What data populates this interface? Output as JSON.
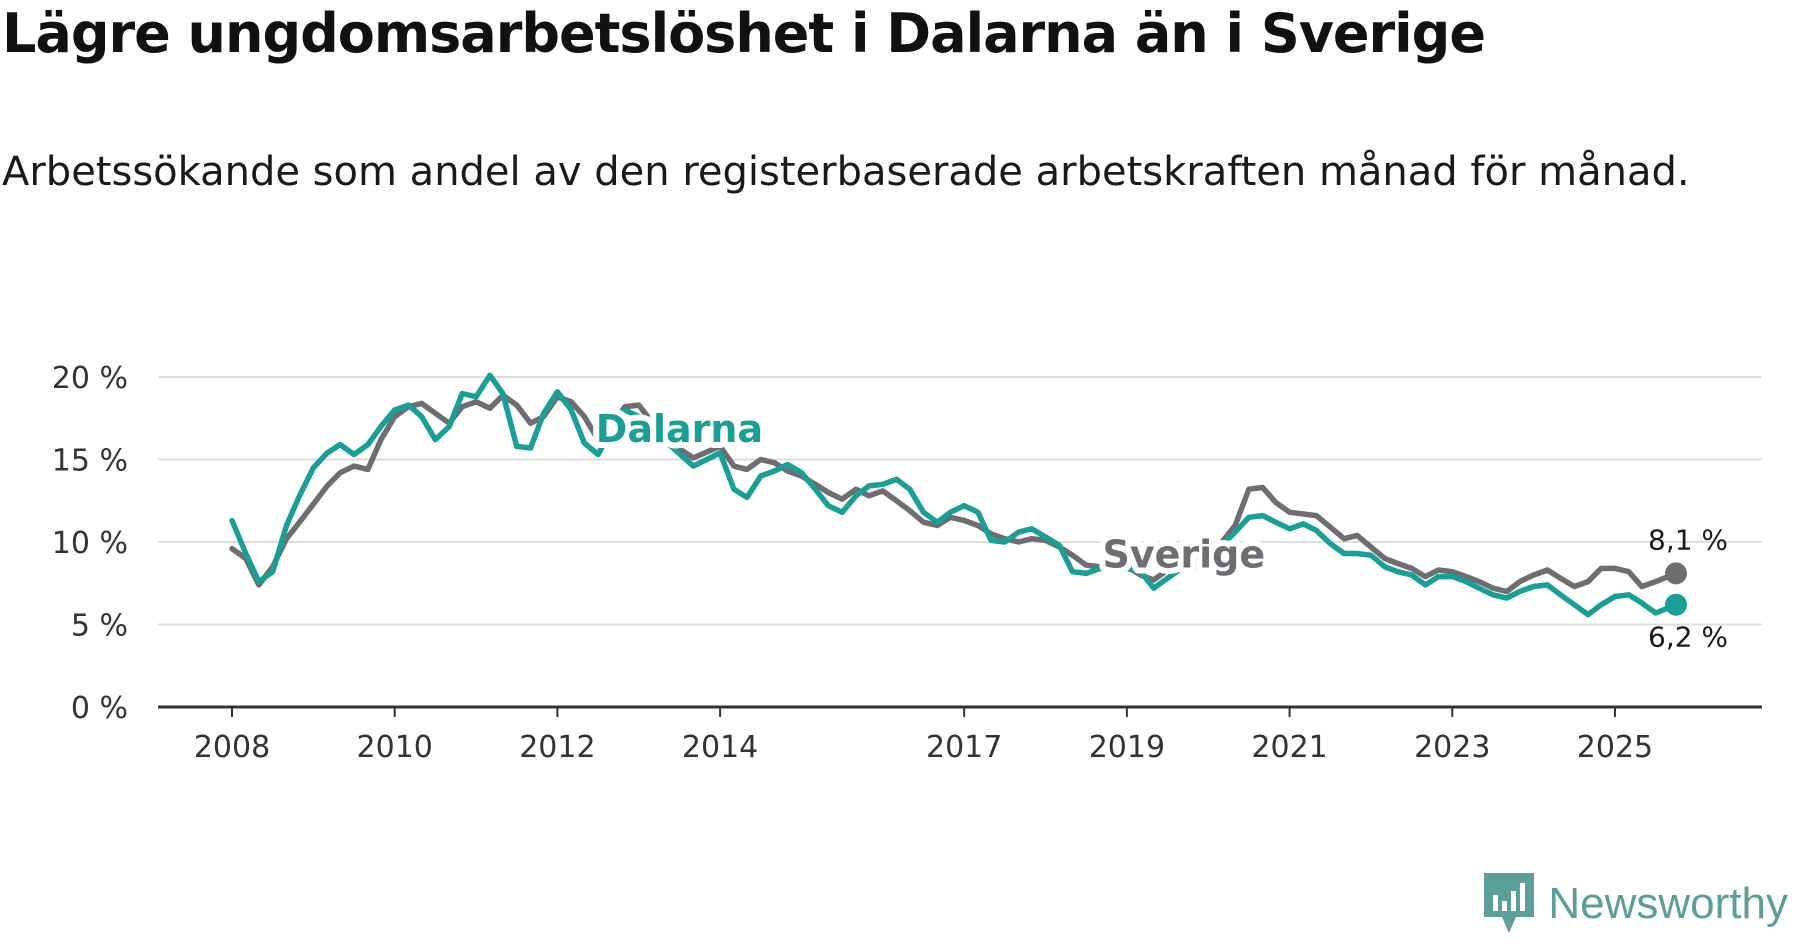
{
  "title": "Lägre ungdomsarbetslöshet i Dalarna än i Sverige",
  "subtitle": "Arbetssökande som andel av den registerbaserade arbetskraften månad för månad.",
  "brand": {
    "name": "Newsworthy",
    "color": "#5c9e98",
    "icon": "newsworthy-logo-icon"
  },
  "chart_data": {
    "type": "line",
    "title": "Lägre ungdomsarbetslöshet i Dalarna än i Sverige",
    "subtitle": "Arbetssökande som andel av den registerbaserade arbetskraften månad för månad.",
    "xlabel": "",
    "ylabel": "",
    "unit": "%",
    "x_domain": [
      2008,
      2025.75
    ],
    "ylim": [
      0,
      20
    ],
    "y_ticks": [
      0,
      5,
      10,
      15,
      20
    ],
    "y_tick_labels": [
      "0 %",
      "5 %",
      "10 %",
      "15 %",
      "20 %"
    ],
    "x_ticks": [
      2008,
      2010,
      2012,
      2014,
      2017,
      2019,
      2021,
      2023,
      2025
    ],
    "x_tick_labels": [
      "2008",
      "2010",
      "2012",
      "2014",
      "2017",
      "2019",
      "2021",
      "2023",
      "2025"
    ],
    "grid": true,
    "series": [
      {
        "name": "Sverige",
        "color": "#6e6d72",
        "end_label": "8,1 %",
        "points": [
          [
            2008.0,
            9.6
          ],
          [
            2008.17,
            9.0
          ],
          [
            2008.33,
            7.4
          ],
          [
            2008.5,
            8.5
          ],
          [
            2008.67,
            10.2
          ],
          [
            2008.83,
            11.2
          ],
          [
            2009.0,
            12.3
          ],
          [
            2009.17,
            13.4
          ],
          [
            2009.33,
            14.2
          ],
          [
            2009.5,
            14.6
          ],
          [
            2009.67,
            14.4
          ],
          [
            2009.83,
            16.2
          ],
          [
            2010.0,
            17.6
          ],
          [
            2010.17,
            18.2
          ],
          [
            2010.33,
            18.4
          ],
          [
            2010.5,
            17.8
          ],
          [
            2010.67,
            17.2
          ],
          [
            2010.83,
            18.2
          ],
          [
            2011.0,
            18.5
          ],
          [
            2011.17,
            18.1
          ],
          [
            2011.33,
            18.9
          ],
          [
            2011.5,
            18.3
          ],
          [
            2011.67,
            17.2
          ],
          [
            2011.83,
            17.6
          ],
          [
            2012.0,
            18.8
          ],
          [
            2012.17,
            18.5
          ],
          [
            2012.33,
            17.6
          ],
          [
            2012.5,
            16.2
          ],
          [
            2012.67,
            17.1
          ],
          [
            2012.83,
            18.2
          ],
          [
            2013.0,
            18.3
          ],
          [
            2013.33,
            16.2
          ],
          [
            2013.67,
            15.1
          ],
          [
            2014.0,
            15.8
          ],
          [
            2014.17,
            14.6
          ],
          [
            2014.33,
            14.4
          ],
          [
            2014.5,
            15.0
          ],
          [
            2014.67,
            14.8
          ],
          [
            2014.83,
            14.3
          ],
          [
            2015.0,
            14.0
          ],
          [
            2015.17,
            13.5
          ],
          [
            2015.33,
            13.0
          ],
          [
            2015.5,
            12.6
          ],
          [
            2015.67,
            13.2
          ],
          [
            2015.83,
            12.8
          ],
          [
            2016.0,
            13.1
          ],
          [
            2016.17,
            12.5
          ],
          [
            2016.33,
            11.9
          ],
          [
            2016.5,
            11.2
          ],
          [
            2016.67,
            11.0
          ],
          [
            2016.83,
            11.5
          ],
          [
            2017.0,
            11.3
          ],
          [
            2017.17,
            11.0
          ],
          [
            2017.33,
            10.5
          ],
          [
            2017.5,
            10.2
          ],
          [
            2017.67,
            10.0
          ],
          [
            2017.83,
            10.2
          ],
          [
            2018.0,
            10.1
          ],
          [
            2018.17,
            9.7
          ],
          [
            2018.33,
            9.2
          ],
          [
            2018.5,
            8.6
          ],
          [
            2018.67,
            8.5
          ],
          [
            2018.83,
            8.8
          ],
          [
            2019.0,
            8.5
          ],
          [
            2019.17,
            8.0
          ],
          [
            2019.33,
            7.7
          ],
          [
            2019.5,
            8.3
          ],
          [
            2019.67,
            8.6
          ],
          [
            2019.83,
            9.0
          ],
          [
            2020.0,
            9.4
          ],
          [
            2020.17,
            10.0
          ],
          [
            2020.33,
            11.0
          ],
          [
            2020.5,
            13.2
          ],
          [
            2020.67,
            13.3
          ],
          [
            2020.83,
            12.4
          ],
          [
            2021.0,
            11.8
          ],
          [
            2021.17,
            11.7
          ],
          [
            2021.33,
            11.6
          ],
          [
            2021.5,
            10.9
          ],
          [
            2021.67,
            10.2
          ],
          [
            2021.83,
            10.4
          ],
          [
            2022.0,
            9.7
          ],
          [
            2022.17,
            9.0
          ],
          [
            2022.33,
            8.7
          ],
          [
            2022.5,
            8.4
          ],
          [
            2022.67,
            7.9
          ],
          [
            2022.83,
            8.3
          ],
          [
            2023.0,
            8.2
          ],
          [
            2023.17,
            7.9
          ],
          [
            2023.33,
            7.6
          ],
          [
            2023.5,
            7.2
          ],
          [
            2023.67,
            7.0
          ],
          [
            2023.83,
            7.6
          ],
          [
            2024.0,
            8.0
          ],
          [
            2024.17,
            8.3
          ],
          [
            2024.33,
            7.8
          ],
          [
            2024.5,
            7.3
          ],
          [
            2024.67,
            7.6
          ],
          [
            2024.83,
            8.4
          ],
          [
            2025.0,
            8.4
          ],
          [
            2025.17,
            8.2
          ],
          [
            2025.33,
            7.3
          ],
          [
            2025.5,
            7.6
          ],
          [
            2025.75,
            8.1
          ]
        ]
      },
      {
        "name": "Dalarna",
        "color": "#1a9e95",
        "end_label": "6,2 %",
        "points": [
          [
            2008.0,
            11.3
          ],
          [
            2008.17,
            9.3
          ],
          [
            2008.33,
            7.6
          ],
          [
            2008.5,
            8.2
          ],
          [
            2008.67,
            11.0
          ],
          [
            2008.83,
            12.8
          ],
          [
            2009.0,
            14.5
          ],
          [
            2009.17,
            15.4
          ],
          [
            2009.33,
            15.9
          ],
          [
            2009.5,
            15.3
          ],
          [
            2009.67,
            15.9
          ],
          [
            2009.83,
            17.0
          ],
          [
            2010.0,
            18.0
          ],
          [
            2010.17,
            18.3
          ],
          [
            2010.33,
            17.6
          ],
          [
            2010.5,
            16.2
          ],
          [
            2010.67,
            17.0
          ],
          [
            2010.83,
            19.0
          ],
          [
            2011.0,
            18.8
          ],
          [
            2011.17,
            20.1
          ],
          [
            2011.33,
            19.0
          ],
          [
            2011.5,
            15.8
          ],
          [
            2011.67,
            15.7
          ],
          [
            2011.83,
            17.8
          ],
          [
            2012.0,
            19.1
          ],
          [
            2012.17,
            18.0
          ],
          [
            2012.33,
            16.0
          ],
          [
            2012.5,
            15.3
          ],
          [
            2012.67,
            16.9
          ],
          [
            2012.83,
            18.0
          ],
          [
            2013.0,
            17.6
          ],
          [
            2013.33,
            16.1
          ],
          [
            2013.67,
            14.6
          ],
          [
            2014.0,
            15.4
          ],
          [
            2014.17,
            13.2
          ],
          [
            2014.33,
            12.7
          ],
          [
            2014.5,
            14.0
          ],
          [
            2014.67,
            14.3
          ],
          [
            2014.83,
            14.7
          ],
          [
            2015.0,
            14.2
          ],
          [
            2015.17,
            13.2
          ],
          [
            2015.33,
            12.2
          ],
          [
            2015.5,
            11.8
          ],
          [
            2015.67,
            12.8
          ],
          [
            2015.83,
            13.4
          ],
          [
            2016.0,
            13.5
          ],
          [
            2016.17,
            13.8
          ],
          [
            2016.33,
            13.2
          ],
          [
            2016.5,
            11.8
          ],
          [
            2016.67,
            11.2
          ],
          [
            2016.83,
            11.8
          ],
          [
            2017.0,
            12.2
          ],
          [
            2017.17,
            11.8
          ],
          [
            2017.33,
            10.1
          ],
          [
            2017.5,
            10.0
          ],
          [
            2017.67,
            10.6
          ],
          [
            2017.83,
            10.8
          ],
          [
            2018.0,
            10.3
          ],
          [
            2018.17,
            9.8
          ],
          [
            2018.33,
            8.2
          ],
          [
            2018.5,
            8.1
          ],
          [
            2018.67,
            8.4
          ],
          [
            2018.83,
            8.3
          ],
          [
            2019.0,
            8.4
          ],
          [
            2019.17,
            8.2
          ],
          [
            2019.33,
            7.2
          ],
          [
            2019.5,
            7.8
          ],
          [
            2019.67,
            8.4
          ],
          [
            2019.83,
            8.5
          ],
          [
            2020.0,
            8.9
          ],
          [
            2020.17,
            9.8
          ],
          [
            2020.33,
            10.6
          ],
          [
            2020.5,
            11.5
          ],
          [
            2020.67,
            11.6
          ],
          [
            2020.83,
            11.2
          ],
          [
            2021.0,
            10.8
          ],
          [
            2021.17,
            11.1
          ],
          [
            2021.33,
            10.7
          ],
          [
            2021.5,
            9.9
          ],
          [
            2021.67,
            9.3
          ],
          [
            2021.83,
            9.3
          ],
          [
            2022.0,
            9.2
          ],
          [
            2022.17,
            8.5
          ],
          [
            2022.33,
            8.2
          ],
          [
            2022.5,
            8.0
          ],
          [
            2022.67,
            7.4
          ],
          [
            2022.83,
            7.9
          ],
          [
            2023.0,
            7.9
          ],
          [
            2023.17,
            7.6
          ],
          [
            2023.33,
            7.2
          ],
          [
            2023.5,
            6.8
          ],
          [
            2023.67,
            6.6
          ],
          [
            2023.83,
            7.0
          ],
          [
            2024.0,
            7.3
          ],
          [
            2024.17,
            7.4
          ],
          [
            2024.33,
            6.8
          ],
          [
            2024.5,
            6.2
          ],
          [
            2024.67,
            5.6
          ],
          [
            2024.83,
            6.2
          ],
          [
            2025.0,
            6.7
          ],
          [
            2025.17,
            6.8
          ],
          [
            2025.33,
            6.3
          ],
          [
            2025.5,
            5.7
          ],
          [
            2025.75,
            6.2
          ]
        ]
      }
    ],
    "annotations": [
      {
        "text": "Dalarna",
        "series": "Dalarna",
        "at_x": 2013.5,
        "at_y": 16.9
      },
      {
        "text": "Sverige",
        "series": "Sverige",
        "at_x": 2019.7,
        "at_y": 9.3
      }
    ]
  }
}
